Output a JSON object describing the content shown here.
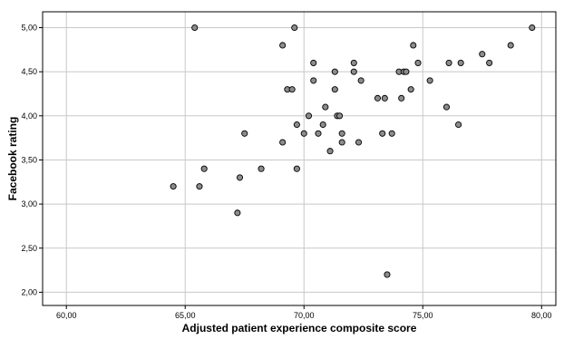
{
  "chart_data": {
    "type": "scatter",
    "xlabel": "Adjusted patient experience composite score",
    "ylabel": "Facebook rating",
    "xlim": [
      59.0,
      80.6
    ],
    "ylim": [
      1.85,
      5.18
    ],
    "grid": true,
    "x_ticks": [
      {
        "value": 60,
        "label": "60,00"
      },
      {
        "value": 65,
        "label": "65,00"
      },
      {
        "value": 70,
        "label": "70,00"
      },
      {
        "value": 75,
        "label": "75,00"
      },
      {
        "value": 80,
        "label": "80,00"
      }
    ],
    "y_ticks": [
      {
        "value": 2.0,
        "label": "2,00"
      },
      {
        "value": 2.5,
        "label": "2,50"
      },
      {
        "value": 3.0,
        "label": "3,00"
      },
      {
        "value": 3.5,
        "label": "3,50"
      },
      {
        "value": 4.0,
        "label": "4,00"
      },
      {
        "value": 4.5,
        "label": "4,50"
      },
      {
        "value": 5.0,
        "label": "5,00"
      }
    ],
    "marker_color": "#8c8c8c",
    "marker_stroke": "#000000",
    "points": [
      {
        "x": 64.5,
        "y": 3.2
      },
      {
        "x": 65.4,
        "y": 5.0
      },
      {
        "x": 65.6,
        "y": 3.2
      },
      {
        "x": 65.8,
        "y": 3.4
      },
      {
        "x": 67.2,
        "y": 2.9
      },
      {
        "x": 67.3,
        "y": 3.3
      },
      {
        "x": 67.5,
        "y": 3.8
      },
      {
        "x": 68.2,
        "y": 3.4
      },
      {
        "x": 69.1,
        "y": 3.7
      },
      {
        "x": 69.1,
        "y": 4.8
      },
      {
        "x": 69.3,
        "y": 4.3
      },
      {
        "x": 69.5,
        "y": 4.3
      },
      {
        "x": 69.6,
        "y": 5.0
      },
      {
        "x": 69.7,
        "y": 3.9
      },
      {
        "x": 69.7,
        "y": 3.4
      },
      {
        "x": 70.0,
        "y": 3.8
      },
      {
        "x": 70.2,
        "y": 4.0
      },
      {
        "x": 70.4,
        "y": 4.6
      },
      {
        "x": 70.4,
        "y": 4.4
      },
      {
        "x": 70.6,
        "y": 3.8
      },
      {
        "x": 70.8,
        "y": 3.9
      },
      {
        "x": 70.9,
        "y": 4.1
      },
      {
        "x": 71.1,
        "y": 3.6
      },
      {
        "x": 71.3,
        "y": 4.5
      },
      {
        "x": 71.3,
        "y": 4.3
      },
      {
        "x": 71.4,
        "y": 4.0
      },
      {
        "x": 71.5,
        "y": 4.0
      },
      {
        "x": 71.6,
        "y": 3.8
      },
      {
        "x": 71.6,
        "y": 3.7
      },
      {
        "x": 72.1,
        "y": 4.6
      },
      {
        "x": 72.1,
        "y": 4.5
      },
      {
        "x": 72.3,
        "y": 3.7
      },
      {
        "x": 72.4,
        "y": 4.4
      },
      {
        "x": 73.1,
        "y": 4.2
      },
      {
        "x": 73.3,
        "y": 3.8
      },
      {
        "x": 73.4,
        "y": 4.2
      },
      {
        "x": 73.5,
        "y": 2.2
      },
      {
        "x": 73.7,
        "y": 3.8
      },
      {
        "x": 74.0,
        "y": 4.5
      },
      {
        "x": 74.1,
        "y": 4.2
      },
      {
        "x": 74.2,
        "y": 4.5
      },
      {
        "x": 74.3,
        "y": 4.5
      },
      {
        "x": 74.5,
        "y": 4.3
      },
      {
        "x": 74.6,
        "y": 4.8
      },
      {
        "x": 74.8,
        "y": 4.6
      },
      {
        "x": 75.3,
        "y": 4.4
      },
      {
        "x": 76.0,
        "y": 4.1
      },
      {
        "x": 76.1,
        "y": 4.6
      },
      {
        "x": 76.5,
        "y": 3.9
      },
      {
        "x": 76.6,
        "y": 4.6
      },
      {
        "x": 77.5,
        "y": 4.7
      },
      {
        "x": 77.8,
        "y": 4.6
      },
      {
        "x": 78.7,
        "y": 4.8
      },
      {
        "x": 79.6,
        "y": 5.0
      }
    ]
  }
}
